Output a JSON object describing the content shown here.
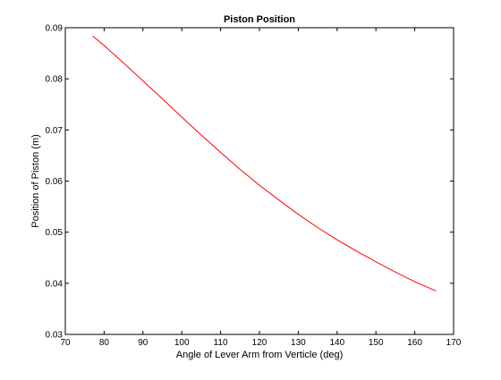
{
  "chart_data": {
    "type": "line",
    "title": "Piston Position",
    "xlabel": "Angle of Lever Arm from Verticle (deg)",
    "ylabel": "Position of Piston (m)",
    "xlim": [
      70,
      170
    ],
    "ylim": [
      0.03,
      0.09
    ],
    "xticks": [
      70,
      80,
      90,
      100,
      110,
      120,
      130,
      140,
      150,
      160,
      170
    ],
    "yticks": [
      0.03,
      0.04,
      0.05,
      0.06,
      0.07,
      0.08,
      0.09
    ],
    "xtick_labels": [
      "70",
      "80",
      "90",
      "100",
      "110",
      "120",
      "130",
      "140",
      "150",
      "160",
      "170"
    ],
    "ytick_labels": [
      "0.03",
      "0.04",
      "0.05",
      "0.06",
      "0.07",
      "0.08",
      "0.09"
    ],
    "grid": false,
    "series": [
      {
        "color": "#ff0000",
        "x": [
          77,
          80,
          85,
          90,
          95,
          100,
          105,
          110,
          115,
          120,
          125,
          130,
          135,
          140,
          145,
          150,
          155,
          160,
          165.5
        ],
        "y": [
          0.0884,
          0.0865,
          0.0831,
          0.0796,
          0.0761,
          0.0725,
          0.069,
          0.0656,
          0.0623,
          0.0592,
          0.0563,
          0.0535,
          0.0509,
          0.0485,
          0.0463,
          0.0442,
          0.0422,
          0.0403,
          0.0385
        ]
      }
    ]
  }
}
